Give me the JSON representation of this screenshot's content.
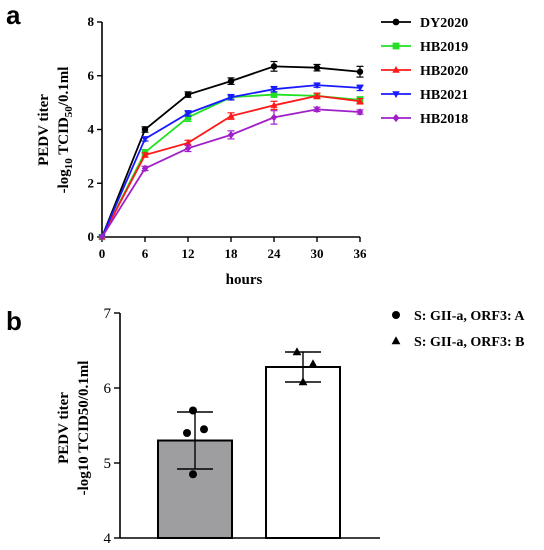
{
  "chart_data": [
    {
      "panel": "a",
      "type": "line",
      "xlabel": "hours",
      "ylabel_line1": "PEDV titer",
      "ylabel_line2_prefix": "-log",
      "ylabel_line2_sub": "10",
      "ylabel_line2_mid": " TCID",
      "ylabel_line2_sub2": "50",
      "ylabel_line2_suffix": "/0.1ml",
      "x": [
        0,
        6,
        12,
        18,
        24,
        30,
        36
      ],
      "xlim": [
        0,
        36
      ],
      "ylim": [
        0,
        8
      ],
      "xticks": [
        "0",
        "6",
        "12",
        "18",
        "24",
        "30",
        "36"
      ],
      "yticks": [
        "0",
        "2",
        "4",
        "6",
        "8"
      ],
      "legend_position": "right",
      "series": [
        {
          "name": "DY2020",
          "color": "#000000",
          "marker": "circle",
          "values": [
            0,
            4.0,
            5.3,
            5.8,
            6.35,
            6.3,
            6.15
          ],
          "errors": [
            0,
            0.1,
            0.1,
            0.12,
            0.18,
            0.12,
            0.2
          ]
        },
        {
          "name": "HB2019",
          "color": "#22e022",
          "marker": "square",
          "values": [
            0,
            3.15,
            4.45,
            5.2,
            5.3,
            5.25,
            5.1
          ],
          "errors": [
            0,
            0.1,
            0.15,
            0.1,
            0.1,
            0.1,
            0.12
          ]
        },
        {
          "name": "HB2020",
          "color": "#ff1a1a",
          "marker": "triangle-up",
          "values": [
            0,
            3.05,
            3.5,
            4.5,
            4.9,
            5.25,
            5.05
          ],
          "errors": [
            0,
            0.08,
            0.1,
            0.12,
            0.15,
            0.1,
            0.1
          ]
        },
        {
          "name": "HB2021",
          "color": "#1a1aff",
          "marker": "triangle-down",
          "values": [
            0,
            3.65,
            4.6,
            5.2,
            5.5,
            5.65,
            5.55
          ],
          "errors": [
            0,
            0.08,
            0.1,
            0.1,
            0.1,
            0.08,
            0.1
          ]
        },
        {
          "name": "HB2018",
          "color": "#a020c8",
          "marker": "diamond",
          "values": [
            0,
            2.55,
            3.3,
            3.8,
            4.45,
            4.75,
            4.65
          ],
          "errors": [
            0,
            0.08,
            0.12,
            0.15,
            0.25,
            0.08,
            0.08
          ]
        }
      ]
    },
    {
      "panel": "b",
      "type": "bar",
      "ylabel_line1": "PEDV titer",
      "ylabel_line2": "-log10 TCID50/0.1ml",
      "ylim": [
        4,
        7
      ],
      "yticks": [
        "4",
        "5",
        "6",
        "7"
      ],
      "legend_position": "top-right",
      "legend": [
        {
          "label": "S: GII-a, ORF3: A",
          "marker": "circle"
        },
        {
          "label": "S: GII-a, ORF3: B",
          "marker": "triangle-up"
        }
      ],
      "bars": [
        {
          "group": "S: GII-a, ORF3: A",
          "value": 5.3,
          "error": 0.38,
          "fill": "#9e9ea0",
          "points": [
            5.7,
            5.45,
            5.4,
            4.85
          ],
          "marker": "circle"
        },
        {
          "group": "S: GII-a, ORF3: B",
          "value": 6.28,
          "error": 0.2,
          "fill": "#ffffff",
          "points": [
            6.48,
            6.32,
            6.08
          ],
          "marker": "triangle-up"
        }
      ]
    }
  ],
  "labels": {
    "panel_a": "a",
    "panel_b": "b"
  }
}
